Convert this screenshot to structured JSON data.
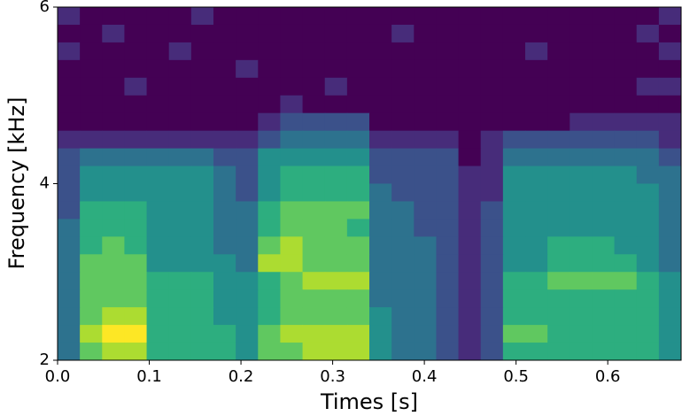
{
  "chart_data": {
    "type": "heatmap",
    "colormap": "viridis",
    "xlabel": "Times [s]",
    "ylabel": "Frequency [kHz]",
    "xlim": [
      0,
      0.68
    ],
    "ylim": [
      2,
      6
    ],
    "xticks": [
      {
        "value": 0,
        "label": "0.0"
      },
      0.1,
      0.2,
      0.3,
      0.4,
      0.5,
      0.6
    ],
    "yticks": [
      2,
      4,
      6
    ],
    "z": [
      [
        2,
        1,
        1,
        1,
        1,
        1,
        2,
        1,
        1,
        1,
        1,
        1,
        1,
        1,
        1,
        1,
        1,
        1,
        1,
        1,
        1,
        1,
        1,
        1,
        1,
        1,
        1,
        2
      ],
      [
        1,
        1,
        2,
        1,
        1,
        1,
        1,
        1,
        1,
        1,
        1,
        1,
        1,
        1,
        1,
        2,
        1,
        1,
        1,
        1,
        1,
        1,
        1,
        1,
        1,
        1,
        2,
        1
      ],
      [
        2,
        1,
        1,
        1,
        1,
        2,
        1,
        1,
        1,
        1,
        1,
        1,
        1,
        1,
        1,
        1,
        1,
        1,
        1,
        1,
        1,
        2,
        1,
        1,
        1,
        1,
        1,
        2
      ],
      [
        1,
        1,
        1,
        1,
        1,
        1,
        1,
        1,
        2,
        1,
        1,
        1,
        1,
        1,
        1,
        1,
        1,
        1,
        1,
        1,
        1,
        1,
        1,
        1,
        1,
        1,
        1,
        1
      ],
      [
        1,
        1,
        1,
        2,
        1,
        1,
        1,
        1,
        1,
        1,
        1,
        1,
        2,
        1,
        1,
        1,
        1,
        1,
        1,
        1,
        1,
        1,
        1,
        1,
        1,
        1,
        2,
        2
      ],
      [
        1,
        1,
        1,
        1,
        1,
        1,
        1,
        1,
        1,
        1,
        2,
        1,
        1,
        1,
        1,
        1,
        1,
        1,
        1,
        1,
        1,
        1,
        1,
        1,
        1,
        1,
        1,
        1
      ],
      [
        1,
        1,
        1,
        1,
        1,
        1,
        1,
        1,
        1,
        2,
        3,
        3,
        3,
        3,
        1,
        1,
        1,
        1,
        1,
        1,
        1,
        1,
        1,
        2,
        2,
        2,
        2,
        2
      ],
      [
        2,
        2,
        2,
        2,
        2,
        2,
        2,
        2,
        2,
        3,
        4,
        4,
        4,
        4,
        2,
        2,
        2,
        2,
        1,
        2,
        3,
        3,
        3,
        3,
        3,
        3,
        3,
        2
      ],
      [
        3,
        4,
        4,
        4,
        4,
        4,
        4,
        3,
        3,
        5,
        5,
        5,
        5,
        5,
        3,
        3,
        3,
        3,
        1,
        2,
        4,
        4,
        4,
        4,
        4,
        4,
        4,
        3
      ],
      [
        3,
        5,
        5,
        5,
        5,
        5,
        5,
        4,
        3,
        5,
        6,
        6,
        6,
        6,
        3,
        3,
        3,
        3,
        2,
        2,
        5,
        5,
        5,
        5,
        5,
        5,
        4,
        4
      ],
      [
        3,
        5,
        5,
        5,
        5,
        5,
        5,
        4,
        3,
        5,
        6,
        6,
        6,
        6,
        4,
        3,
        3,
        3,
        2,
        2,
        5,
        5,
        5,
        5,
        5,
        5,
        5,
        4
      ],
      [
        3,
        6,
        6,
        6,
        5,
        5,
        5,
        4,
        4,
        6,
        7,
        7,
        7,
        7,
        4,
        4,
        3,
        3,
        2,
        3,
        5,
        5,
        5,
        5,
        5,
        5,
        5,
        4
      ],
      [
        4,
        6,
        6,
        6,
        5,
        5,
        5,
        4,
        4,
        6,
        7,
        7,
        7,
        6,
        4,
        4,
        3,
        3,
        2,
        3,
        5,
        5,
        5,
        5,
        5,
        5,
        5,
        4
      ],
      [
        4,
        6,
        7,
        6,
        5,
        5,
        5,
        4,
        4,
        7,
        8,
        7,
        7,
        7,
        4,
        4,
        4,
        3,
        2,
        3,
        5,
        5,
        6,
        6,
        6,
        5,
        5,
        4
      ],
      [
        4,
        7,
        7,
        7,
        5,
        5,
        5,
        5,
        4,
        8,
        8,
        7,
        7,
        7,
        4,
        4,
        4,
        3,
        2,
        3,
        5,
        5,
        6,
        6,
        6,
        6,
        5,
        4
      ],
      [
        4,
        7,
        7,
        7,
        6,
        6,
        6,
        5,
        5,
        6,
        7,
        8,
        8,
        8,
        4,
        4,
        4,
        3,
        2,
        3,
        6,
        6,
        7,
        7,
        7,
        7,
        6,
        5
      ],
      [
        4,
        7,
        7,
        7,
        6,
        6,
        6,
        5,
        5,
        6,
        7,
        7,
        7,
        7,
        4,
        4,
        4,
        3,
        2,
        3,
        6,
        6,
        6,
        6,
        6,
        6,
        6,
        5
      ],
      [
        4,
        7,
        8,
        8,
        6,
        6,
        6,
        5,
        5,
        6,
        7,
        7,
        7,
        7,
        5,
        4,
        4,
        3,
        2,
        3,
        6,
        6,
        6,
        6,
        6,
        6,
        6,
        5
      ],
      [
        4,
        8,
        9,
        9,
        6,
        6,
        6,
        6,
        5,
        7,
        8,
        8,
        8,
        8,
        5,
        4,
        4,
        3,
        2,
        3,
        7,
        7,
        6,
        6,
        6,
        6,
        6,
        5
      ],
      [
        4,
        7,
        8,
        8,
        6,
        6,
        6,
        6,
        5,
        7,
        7,
        8,
        8,
        8,
        5,
        4,
        4,
        3,
        2,
        3,
        6,
        6,
        6,
        6,
        6,
        6,
        6,
        5
      ]
    ]
  }
}
